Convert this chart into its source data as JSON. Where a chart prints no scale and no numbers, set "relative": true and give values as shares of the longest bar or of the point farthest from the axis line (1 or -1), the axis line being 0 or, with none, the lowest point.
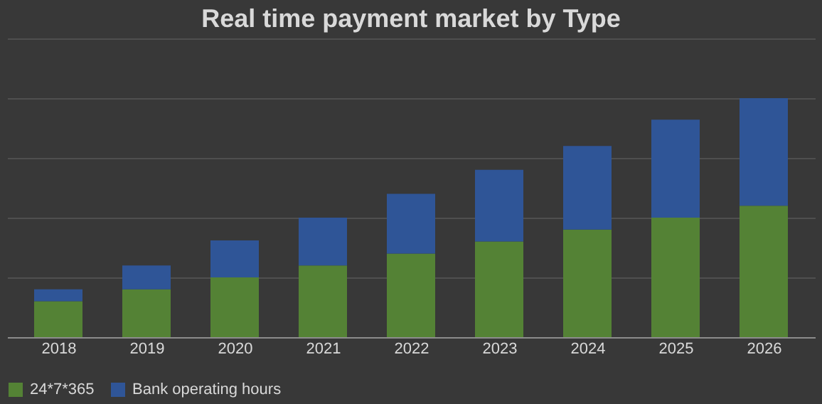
{
  "chart_data": {
    "type": "bar",
    "title": "Real time payment market by Type",
    "relative": true,
    "stacked": true,
    "grid": "y",
    "legend": "bottom",
    "categories": [
      "2018",
      "2019",
      "2020",
      "2021",
      "2022",
      "2023",
      "2024",
      "2025",
      "2026"
    ],
    "series": [
      {
        "name": "24*7*365",
        "color": "#548235",
        "values": [
          0.15,
          0.2,
          0.25,
          0.3,
          0.35,
          0.4,
          0.45,
          0.5,
          0.55
        ]
      },
      {
        "name": "Bank operating hours",
        "color": "#2f5597",
        "values": [
          0.05,
          0.1,
          0.155,
          0.2,
          0.25,
          0.3,
          0.35,
          0.41,
          0.45
        ]
      }
    ]
  }
}
